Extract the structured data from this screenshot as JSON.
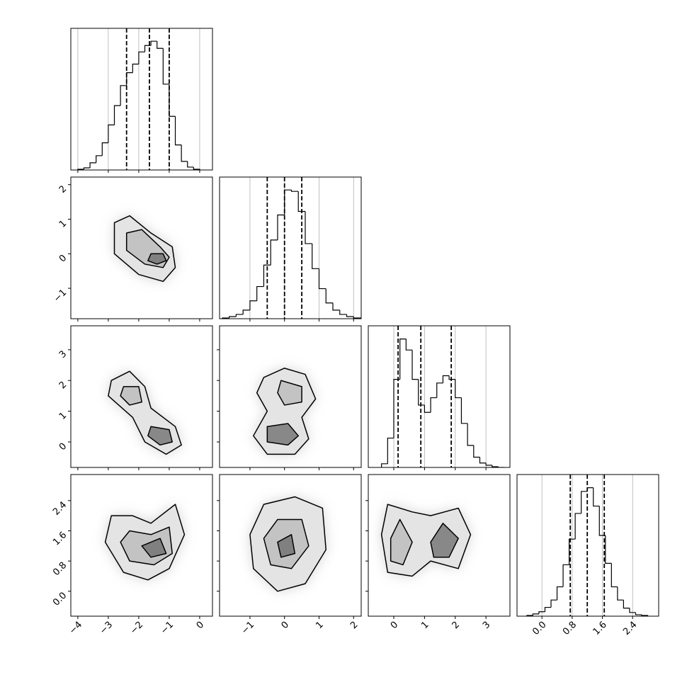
{
  "chart_data": {
    "type": "corner",
    "variables": [
      {
        "lim": [
          -4.23,
          0.42
        ],
        "ticks": [
          {
            "value": -4,
            "label": "−4"
          },
          {
            "value": -3,
            "label": "−3"
          },
          {
            "value": -2,
            "label": "−2"
          },
          {
            "value": -1,
            "label": "−1"
          },
          0
        ],
        "bins": [
          -4.0,
          -3.8,
          -3.6,
          -3.4,
          -3.2,
          -3.0,
          -2.8,
          -2.6,
          -2.4,
          -2.2,
          -2.0,
          -1.8,
          -1.6,
          -1.4,
          -1.2,
          -1.0,
          -0.8,
          -0.6,
          -0.4,
          -0.2,
          0.0
        ],
        "counts": [
          1,
          3,
          10,
          20,
          38,
          63,
          90,
          118,
          136,
          148,
          165,
          174,
          180,
          170,
          120,
          75,
          35,
          12,
          4,
          1
        ],
        "ylim": [
          0,
          198
        ],
        "quantiles": [
          -2.4,
          -1.65,
          -1.0
        ]
      },
      {
        "lim": [
          -1.88,
          2.22
        ],
        "ticks": [
          {
            "value": -1,
            "label": "−1"
          },
          0,
          1,
          2
        ],
        "bins": [
          -1.8,
          -1.6,
          -1.4,
          -1.2,
          -1.0,
          -0.8,
          -0.6,
          -0.4,
          -0.2,
          0.0,
          0.2,
          0.4,
          0.6,
          0.8,
          1.0,
          1.2,
          1.4,
          1.6,
          1.8,
          2.0,
          2.2
        ],
        "counts": [
          1,
          3,
          6,
          12,
          25,
          45,
          75,
          110,
          145,
          180,
          178,
          150,
          105,
          70,
          42,
          22,
          12,
          6,
          3,
          1
        ],
        "ylim": [
          0,
          198
        ],
        "quantiles": [
          -0.5,
          0.0,
          0.5
        ]
      },
      {
        "lim": [
          -0.83,
          3.78
        ],
        "ticks": [
          0,
          1,
          2,
          3
        ],
        "bins": [
          -0.4,
          -0.2,
          0.0,
          0.2,
          0.4,
          0.6,
          0.8,
          1.0,
          1.2,
          1.4,
          1.6,
          1.8,
          2.0,
          2.2,
          2.4,
          2.6,
          2.8,
          3.0,
          3.2,
          3.4,
          3.6
        ],
        "counts": [
          5,
          40,
          120,
          175,
          160,
          120,
          85,
          75,
          95,
          115,
          125,
          120,
          95,
          60,
          30,
          14,
          6,
          3,
          1,
          0
        ],
        "ylim": [
          0,
          193
        ],
        "quantiles": [
          0.14,
          0.88,
          1.87
        ]
      },
      {
        "lim": [
          -0.66,
          3.09
        ],
        "ticks": [
          {
            "value": 0,
            "label": "0.0"
          },
          0.8,
          1.6,
          2.4
        ],
        "bins": [
          -0.4,
          -0.24,
          -0.08,
          0.08,
          0.24,
          0.4,
          0.56,
          0.72,
          0.88,
          1.04,
          1.2,
          1.36,
          1.52,
          1.68,
          1.84,
          2.0,
          2.16,
          2.32,
          2.48,
          2.64,
          2.8
        ],
        "counts": [
          1,
          3,
          6,
          12,
          22,
          40,
          70,
          105,
          140,
          170,
          175,
          150,
          110,
          72,
          40,
          22,
          11,
          5,
          2,
          1
        ],
        "ylim": [
          0,
          193
        ],
        "quantiles": [
          0.75,
          1.2,
          1.65
        ]
      }
    ],
    "pairs": [
      {
        "contours": [
          {
            "x": [
              -2.8,
              -2.3,
              -1.6,
              -0.9,
              -0.8,
              -1.2,
              -2.0,
              -2.8
            ],
            "y": [
              0.9,
              1.1,
              0.6,
              0.2,
              -0.4,
              -0.8,
              -0.6,
              0.0
            ]
          },
          {
            "x": [
              -2.4,
              -1.9,
              -1.3,
              -1.0,
              -1.2,
              -1.8,
              -2.4
            ],
            "y": [
              0.6,
              0.7,
              0.2,
              -0.1,
              -0.4,
              -0.3,
              0.1
            ]
          },
          {
            "x": [
              -1.6,
              -1.2,
              -1.1,
              -1.4,
              -1.7
            ],
            "y": [
              0.0,
              0.0,
              -0.2,
              -0.3,
              -0.2
            ]
          }
        ]
      },
      {
        "contours": [
          {
            "x": [
              -2.9,
              -2.3,
              -1.8,
              -1.6,
              -0.8,
              -0.6,
              -1.1,
              -1.8,
              -2.2,
              -3.0
            ],
            "y": [
              2.0,
              2.3,
              1.8,
              1.1,
              0.5,
              -0.1,
              -0.4,
              0.0,
              0.8,
              1.5
            ]
          },
          {
            "x": [
              -2.5,
              -2.0,
              -1.9,
              -2.3,
              -2.6
            ],
            "y": [
              1.8,
              1.8,
              1.3,
              1.2,
              1.5
            ]
          },
          {
            "x": [
              -1.6,
              -1.0,
              -0.9,
              -1.3,
              -1.7
            ],
            "y": [
              0.5,
              0.4,
              0.0,
              -0.1,
              0.2
            ]
          }
        ]
      },
      {
        "contours": [
          {
            "x": [
              -0.6,
              0.0,
              0.6,
              0.9,
              0.5,
              0.7,
              0.3,
              -0.5,
              -0.9,
              -0.5,
              -0.8
            ],
            "y": [
              2.1,
              2.4,
              2.2,
              1.4,
              0.8,
              0.1,
              -0.4,
              -0.4,
              0.2,
              1.0,
              1.6
            ]
          },
          {
            "x": [
              -0.1,
              0.5,
              0.5,
              0.0,
              -0.2
            ],
            "y": [
              2.0,
              1.8,
              1.3,
              1.2,
              1.6
            ]
          },
          {
            "x": [
              -0.5,
              0.1,
              0.4,
              0.1,
              -0.5
            ],
            "y": [
              0.5,
              0.6,
              0.2,
              -0.1,
              0.0
            ]
          }
        ]
      },
      {
        "contours": [
          {
            "x": [
              -3.1,
              -2.9,
              -2.2,
              -1.6,
              -0.8,
              -0.5,
              -1.0,
              -1.7,
              -2.5
            ],
            "y": [
              1.3,
              2.0,
              2.0,
              1.8,
              2.3,
              1.5,
              0.6,
              0.3,
              0.5
            ]
          },
          {
            "x": [
              -2.6,
              -2.3,
              -1.6,
              -1.0,
              -0.9,
              -1.5,
              -2.3
            ],
            "y": [
              1.3,
              1.6,
              1.5,
              1.7,
              1.0,
              0.7,
              0.8
            ]
          },
          {
            "x": [
              -1.9,
              -1.3,
              -1.1,
              -1.6
            ],
            "y": [
              1.2,
              1.4,
              1.0,
              0.9
            ]
          }
        ]
      },
      {
        "contours": [
          {
            "x": [
              -1.0,
              -0.6,
              0.3,
              1.1,
              1.2,
              0.6,
              -0.2,
              -0.9
            ],
            "y": [
              1.5,
              2.3,
              2.5,
              2.2,
              1.1,
              0.2,
              0.0,
              0.6
            ]
          },
          {
            "x": [
              -0.6,
              -0.2,
              0.5,
              0.7,
              0.2,
              -0.4
            ],
            "y": [
              1.4,
              1.9,
              1.9,
              1.2,
              0.6,
              0.7
            ]
          },
          {
            "x": [
              -0.2,
              0.2,
              0.3,
              -0.1
            ],
            "y": [
              1.3,
              1.5,
              1.0,
              0.9
            ]
          }
        ]
      },
      {
        "contours": [
          {
            "x": [
              -0.4,
              -0.2,
              0.6,
              1.2,
              2.1,
              2.5,
              2.1,
              1.2,
              0.6,
              -0.2
            ],
            "y": [
              1.5,
              2.3,
              2.1,
              2.0,
              2.2,
              1.5,
              0.6,
              0.8,
              0.4,
              0.5
            ]
          },
          {
            "x": [
              -0.1,
              0.2,
              0.6,
              0.3,
              -0.1
            ],
            "y": [
              1.4,
              1.9,
              1.3,
              0.7,
              0.8
            ]
          },
          {
            "x": [
              1.2,
              1.6,
              2.1,
              1.8,
              1.3
            ],
            "y": [
              1.3,
              1.8,
              1.4,
              0.9,
              0.9
            ]
          }
        ]
      }
    ]
  }
}
